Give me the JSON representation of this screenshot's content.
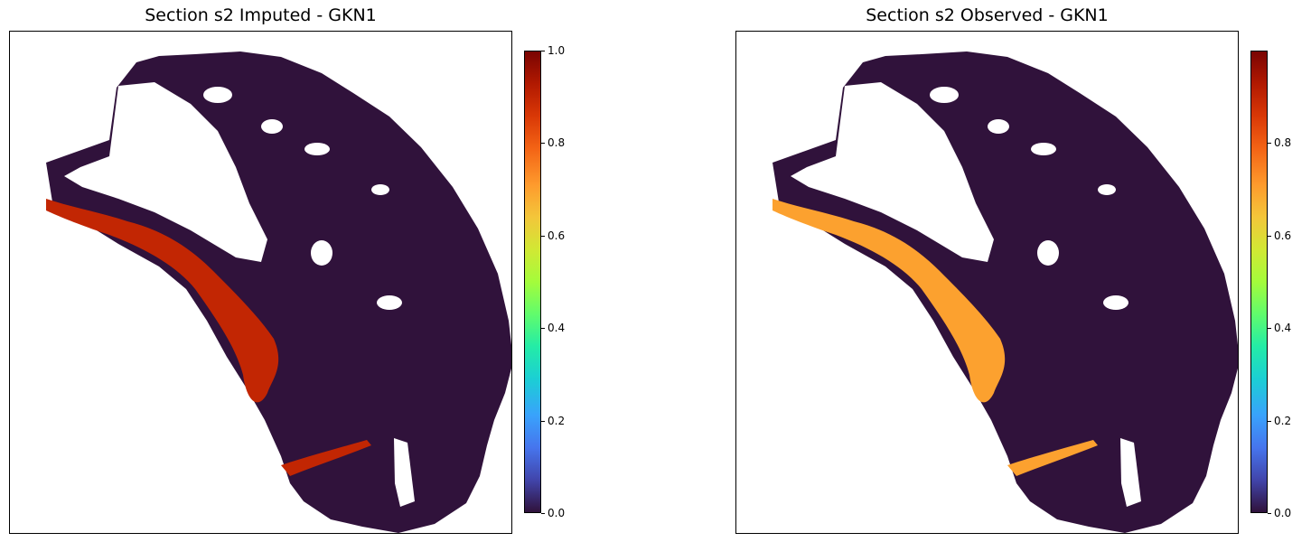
{
  "chart_data": [
    {
      "type": "heatmap",
      "title": "Section s2 Imputed - GKN1",
      "xlabel": "",
      "ylabel": "",
      "colormap": "turbo",
      "colorbar": {
        "range": [
          0.0,
          1.0
        ],
        "ticks": [
          "0.0",
          "0.2",
          "0.4",
          "0.6",
          "0.8",
          "1.0"
        ],
        "tick_values": [
          0.0,
          0.2,
          0.4,
          0.6,
          0.8,
          1.0
        ]
      },
      "background_level": 0.0,
      "high_expression_band": {
        "region": "left outer edge and bottom strip",
        "peak_value": 0.9
      },
      "grid": false
    },
    {
      "type": "heatmap",
      "title": "Section s2 Observed - GKN1",
      "xlabel": "",
      "ylabel": "",
      "colormap": "turbo",
      "colorbar": {
        "range": [
          0.0,
          1.0
        ],
        "ticks": [
          "0.0",
          "0.2",
          "0.4",
          "0.6",
          "0.8"
        ],
        "tick_values": [
          0.0,
          0.2,
          0.4,
          0.6,
          0.8
        ]
      },
      "background_level": 0.0,
      "high_expression_band": {
        "region": "left outer edge and bottom strip",
        "peak_value": 0.7
      },
      "grid": false
    }
  ]
}
